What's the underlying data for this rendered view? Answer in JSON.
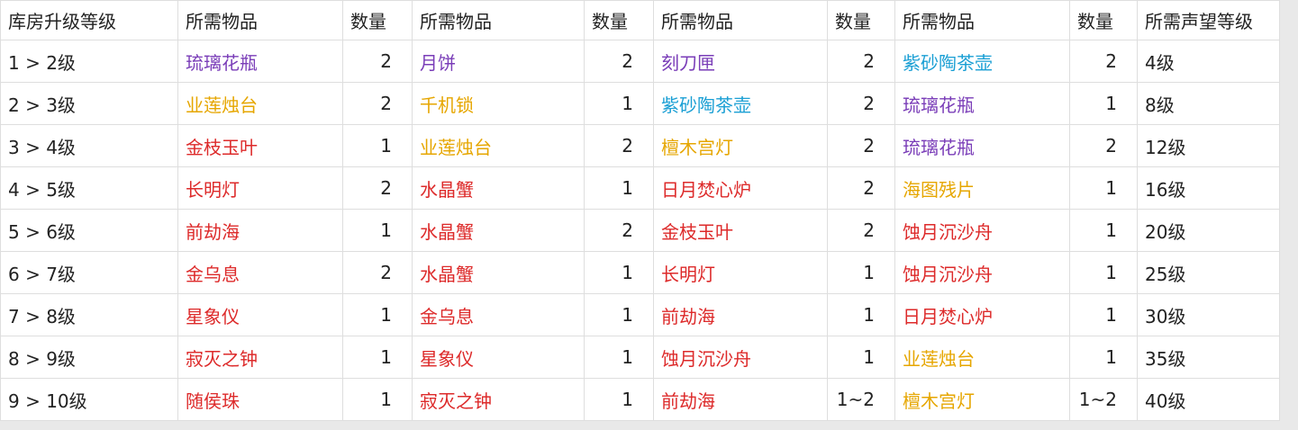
{
  "table": {
    "header": [
      "库房升级等级",
      "所需物品",
      "数量",
      "所需物品",
      "数量",
      "所需物品",
      "数量",
      "所需物品",
      "数量",
      "所需声望等级"
    ],
    "rows": [
      [
        "1 > 2级",
        {
          "text": "琉璃花瓶",
          "color": "#7a3db8"
        },
        2,
        {
          "text": "月饼",
          "color": "#7a3db8"
        },
        2,
        {
          "text": "刻刀匣",
          "color": "#7a3db8"
        },
        2,
        {
          "text": "紫砂陶茶壶",
          "color": "#1a9fd4"
        },
        2,
        "4级"
      ],
      [
        "2 > 3级",
        {
          "text": "业莲烛台",
          "color": "#e6a600"
        },
        2,
        {
          "text": "千机锁",
          "color": "#e6a600"
        },
        1,
        {
          "text": "紫砂陶茶壶",
          "color": "#1a9fd4"
        },
        2,
        {
          "text": "琉璃花瓶",
          "color": "#7a3db8"
        },
        1,
        "8级"
      ],
      [
        "3 > 4级",
        {
          "text": "金枝玉叶",
          "color": "#dd2a2a"
        },
        1,
        {
          "text": "业莲烛台",
          "color": "#e6a600"
        },
        2,
        {
          "text": "檀木宫灯",
          "color": "#e6a600"
        },
        2,
        {
          "text": "琉璃花瓶",
          "color": "#7a3db8"
        },
        2,
        "12级"
      ],
      [
        "4 > 5级",
        {
          "text": "长明灯",
          "color": "#dd2a2a"
        },
        2,
        {
          "text": "水晶蟹",
          "color": "#dd2a2a"
        },
        1,
        {
          "text": "日月焚心炉",
          "color": "#dd2a2a"
        },
        2,
        {
          "text": "海图残片",
          "color": "#e6a600"
        },
        1,
        "16级"
      ],
      [
        "5 > 6级",
        {
          "text": "前劫海",
          "color": "#dd2a2a"
        },
        1,
        {
          "text": "水晶蟹",
          "color": "#dd2a2a"
        },
        2,
        {
          "text": "金枝玉叶",
          "color": "#dd2a2a"
        },
        2,
        {
          "text": "蚀月沉沙舟",
          "color": "#dd2a2a"
        },
        1,
        "20级"
      ],
      [
        "6 > 7级",
        {
          "text": "金乌息",
          "color": "#dd2a2a"
        },
        2,
        {
          "text": "水晶蟹",
          "color": "#dd2a2a"
        },
        1,
        {
          "text": "长明灯",
          "color": "#dd2a2a"
        },
        1,
        {
          "text": "蚀月沉沙舟",
          "color": "#dd2a2a"
        },
        1,
        "25级"
      ],
      [
        "7 > 8级",
        {
          "text": "星象仪",
          "color": "#dd2a2a"
        },
        1,
        {
          "text": "金乌息",
          "color": "#dd2a2a"
        },
        1,
        {
          "text": "前劫海",
          "color": "#dd2a2a"
        },
        1,
        {
          "text": "日月焚心炉",
          "color": "#dd2a2a"
        },
        1,
        "30级"
      ],
      [
        "8 > 9级",
        {
          "text": "寂灭之钟",
          "color": "#dd2a2a"
        },
        1,
        {
          "text": "星象仪",
          "color": "#dd2a2a"
        },
        1,
        {
          "text": "蚀月沉沙舟",
          "color": "#dd2a2a"
        },
        1,
        {
          "text": "业莲烛台",
          "color": "#e6a600"
        },
        1,
        "35级"
      ],
      [
        "9 > 10级",
        {
          "text": "随侯珠",
          "color": "#dd2a2a"
        },
        1,
        {
          "text": "寂灭之钟",
          "color": "#dd2a2a"
        },
        1,
        {
          "text": "前劫海",
          "color": "#dd2a2a"
        },
        "1~2",
        {
          "text": "檀木宫灯",
          "color": "#e6a600"
        },
        "1~2",
        "40级"
      ]
    ]
  }
}
